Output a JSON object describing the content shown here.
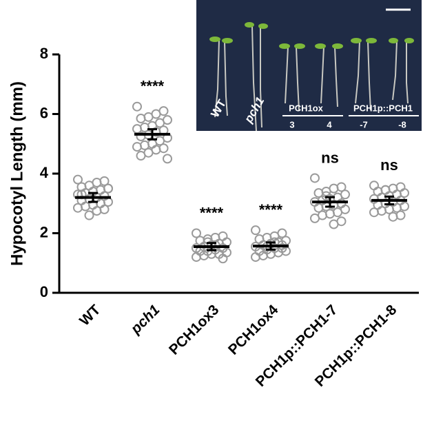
{
  "chart_data": {
    "type": "dot",
    "y_label": "Hypocotyl Length (mm)",
    "categories": [
      "WT",
      "pch1",
      "PCH1ox3",
      "PCH1ox4",
      "PCH1p::PCH1-7",
      "PCH1p::PCH1-8"
    ],
    "italic_categories": [
      "pch1"
    ],
    "points": [
      [
        3.8,
        3.75,
        3.7,
        3.6,
        3.55,
        3.5,
        3.45,
        3.4,
        3.35,
        3.3,
        3.25,
        3.2,
        3.15,
        3.1,
        3.05,
        3.0,
        2.95,
        2.9,
        2.85,
        2.8,
        2.75,
        2.6,
        3.3,
        3.5
      ],
      [
        6.25,
        6.1,
        6.0,
        5.9,
        5.85,
        5.8,
        5.7,
        5.6,
        5.55,
        5.5,
        5.45,
        5.4,
        5.3,
        5.25,
        5.2,
        5.1,
        5.0,
        4.95,
        4.9,
        4.85,
        4.8,
        4.7,
        4.6,
        4.5
      ],
      [
        2.0,
        1.9,
        1.85,
        1.8,
        1.75,
        1.7,
        1.65,
        1.6,
        1.55,
        1.5,
        1.5,
        1.45,
        1.4,
        1.4,
        1.35,
        1.3,
        1.3,
        1.25,
        1.2,
        1.15,
        1.6,
        1.7
      ],
      [
        2.1,
        2.0,
        1.9,
        1.85,
        1.8,
        1.75,
        1.7,
        1.65,
        1.6,
        1.55,
        1.5,
        1.5,
        1.45,
        1.4,
        1.4,
        1.35,
        1.3,
        1.25,
        1.2,
        1.6,
        1.7,
        1.55
      ],
      [
        3.85,
        3.55,
        3.5,
        3.4,
        3.35,
        3.3,
        3.2,
        3.15,
        3.1,
        3.05,
        3.0,
        2.95,
        2.9,
        2.85,
        2.8,
        2.7,
        2.65,
        2.6,
        2.5,
        2.4,
        2.3,
        3.25
      ],
      [
        3.6,
        3.55,
        3.5,
        3.45,
        3.4,
        3.35,
        3.3,
        3.25,
        3.2,
        3.15,
        3.1,
        3.05,
        3.0,
        2.95,
        2.9,
        2.85,
        2.8,
        2.75,
        2.7,
        2.6,
        2.55,
        3.45
      ]
    ],
    "means": [
      3.2,
      5.32,
      1.55,
      1.57,
      3.05,
      3.1
    ],
    "errors": [
      0.15,
      0.17,
      0.12,
      0.12,
      0.16,
      0.13
    ],
    "annotations": [
      null,
      "****",
      "****",
      "****",
      "ns",
      "ns"
    ],
    "marker_color": "#9a9a9a",
    "ylim": [
      0,
      8
    ],
    "yticks": [
      0,
      2,
      4,
      6,
      8
    ]
  },
  "inset": {
    "labels": [
      "WT",
      "pch1"
    ],
    "groups": [
      {
        "label": "PCH1ox",
        "lines": [
          "3",
          "4"
        ]
      },
      {
        "label": "PCH1p::PCH1",
        "lines": [
          "-7",
          "-8"
        ]
      }
    ]
  }
}
